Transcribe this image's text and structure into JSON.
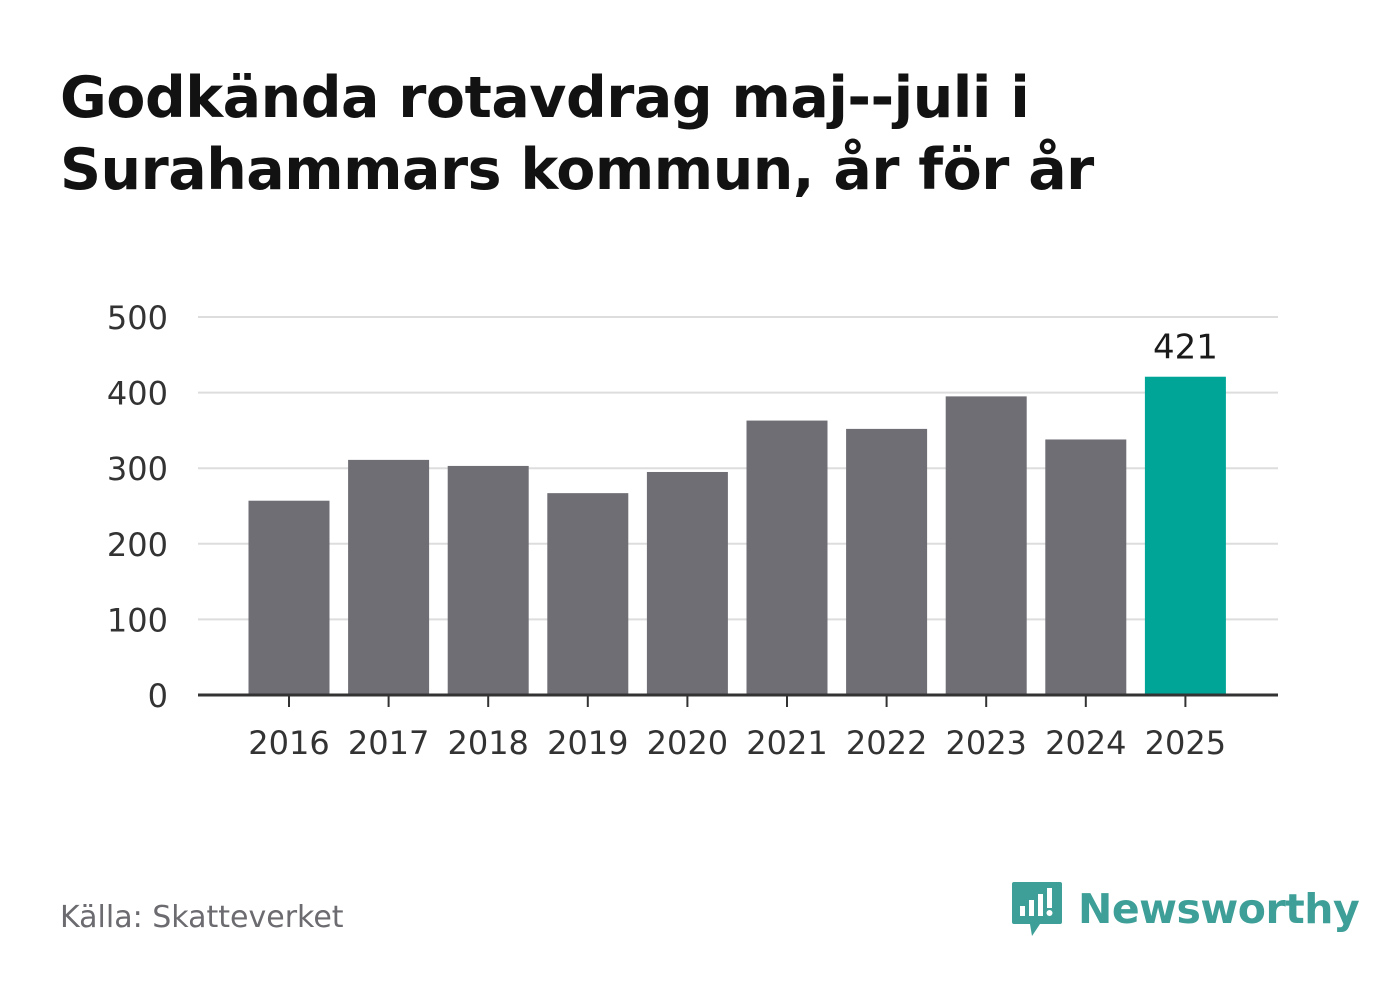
{
  "title": "Godkända rotavdrag maj--juli i Surahammars kommun, år för år",
  "source": "Källa: Skatteverket",
  "brand": {
    "name": "Newsworthy",
    "color": "#3d9f97",
    "icon": "newsworthy-logo-icon"
  },
  "colors": {
    "bar": "#6f6e74",
    "highlight": "#00a598",
    "grid": "#dddddd",
    "axis": "#333333",
    "text": "#333333"
  },
  "chart_data": {
    "type": "bar",
    "categories": [
      "2016",
      "2017",
      "2018",
      "2019",
      "2020",
      "2021",
      "2022",
      "2023",
      "2024",
      "2025"
    ],
    "values": [
      257,
      311,
      303,
      267,
      295,
      363,
      352,
      395,
      338,
      421
    ],
    "highlight_index": 9,
    "data_labels": [
      {
        "index": 9,
        "text": "421"
      }
    ],
    "ylim": [
      0,
      500
    ],
    "yticks": [
      0,
      100,
      200,
      300,
      400,
      500
    ],
    "grid": true,
    "legend": "none",
    "xlabel": "",
    "ylabel": ""
  }
}
